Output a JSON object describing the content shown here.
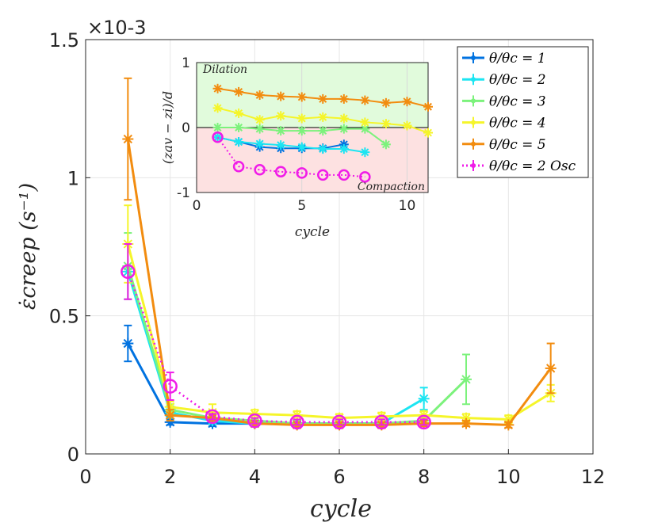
{
  "chart_data": [
    {
      "type": "line",
      "name": "main",
      "xlabel": "cycle",
      "ylabel": "ε̇creep (s⁻¹)",
      "exponent_label": "×10-3",
      "xlim": [
        0,
        12
      ],
      "ylim": [
        0,
        1.5
      ],
      "xticks": [
        "0",
        "2",
        "4",
        "6",
        "8",
        "10",
        "12"
      ],
      "yticks": [
        "0",
        "0.5",
        "1",
        "1.5"
      ],
      "series": [
        {
          "name": "θ/θc = 1",
          "color": "#0072e0",
          "marker": "asterisk",
          "dash": "solid",
          "x": [
            1,
            2,
            3,
            4,
            5,
            6,
            7
          ],
          "y": [
            0.4,
            0.115,
            0.11,
            0.11,
            0.11,
            0.11,
            0.11
          ],
          "err": [
            0.065,
            0.01,
            0.01,
            0.01,
            0.01,
            0.01,
            0.01
          ]
        },
        {
          "name": "θ/θc = 2",
          "color": "#1ce5f2",
          "marker": "asterisk",
          "dash": "solid",
          "x": [
            1,
            2,
            3,
            4,
            5,
            6,
            7,
            8
          ],
          "y": [
            0.66,
            0.15,
            0.12,
            0.11,
            0.11,
            0.11,
            0.11,
            0.2
          ],
          "err": [
            0.1,
            0.02,
            0.01,
            0.01,
            0.01,
            0.01,
            0.01,
            0.04
          ]
        },
        {
          "name": "θ/θc = 3",
          "color": "#7cf27c",
          "marker": "asterisk",
          "dash": "solid",
          "x": [
            1,
            2,
            3,
            4,
            5,
            6,
            7,
            8,
            9
          ],
          "y": [
            0.68,
            0.16,
            0.13,
            0.12,
            0.11,
            0.11,
            0.11,
            0.12,
            0.27
          ],
          "err": [
            0.12,
            0.02,
            0.01,
            0.01,
            0.01,
            0.01,
            0.01,
            0.01,
            0.09
          ]
        },
        {
          "name": "θ/θc = 4",
          "color": "#f5f52a",
          "marker": "asterisk",
          "dash": "solid",
          "x": [
            1,
            2,
            3,
            4,
            5,
            6,
            7,
            8,
            9,
            10,
            11
          ],
          "y": [
            0.76,
            0.17,
            0.15,
            0.145,
            0.14,
            0.13,
            0.135,
            0.14,
            0.13,
            0.125,
            0.22
          ],
          "err": [
            0.14,
            0.02,
            0.03,
            0.015,
            0.015,
            0.015,
            0.015,
            0.015,
            0.015,
            0.015,
            0.03
          ]
        },
        {
          "name": "θ/θc = 5",
          "color": "#f28c0f",
          "marker": "asterisk",
          "dash": "solid",
          "x": [
            1,
            2,
            3,
            4,
            5,
            6,
            7,
            8,
            9,
            10,
            11
          ],
          "y": [
            1.14,
            0.14,
            0.13,
            0.11,
            0.105,
            0.105,
            0.105,
            0.11,
            0.11,
            0.105,
            0.31
          ],
          "err": [
            0.22,
            0.02,
            0.01,
            0.01,
            0.01,
            0.01,
            0.01,
            0.01,
            0.01,
            0.01,
            0.09
          ]
        },
        {
          "name": "θ/θc = 2 Osc",
          "color": "#f01ce8",
          "marker": "circle",
          "dash": "dotted",
          "x": [
            1,
            2,
            3,
            4,
            5,
            6,
            7,
            8
          ],
          "y": [
            0.66,
            0.245,
            0.135,
            0.12,
            0.115,
            0.115,
            0.115,
            0.115
          ],
          "err": [
            0.1,
            0.05,
            0.01,
            0.01,
            0.01,
            0.01,
            0.01,
            0.01
          ]
        }
      ],
      "legend": "top-right"
    },
    {
      "type": "line",
      "name": "inset",
      "xlabel": "cycle",
      "ylabel": "(zav − zi)/d",
      "xlim": [
        0,
        11
      ],
      "ylim": [
        -1,
        1
      ],
      "xticks": [
        "0",
        "5",
        "10"
      ],
      "yticks": [
        "-1",
        "0",
        "1"
      ],
      "annotations": [
        "Dilation",
        "Compaction"
      ],
      "series": [
        {
          "name": "θ/θc = 1",
          "color": "#0072e0",
          "marker": "asterisk",
          "dash": "solid",
          "x": [
            1,
            2,
            3,
            4,
            5,
            6,
            7
          ],
          "y": [
            -0.15,
            -0.22,
            -0.3,
            -0.32,
            -0.32,
            -0.32,
            -0.26
          ]
        },
        {
          "name": "θ/θc = 2",
          "color": "#1ce5f2",
          "marker": "asterisk",
          "dash": "solid",
          "x": [
            1,
            2,
            3,
            4,
            5,
            6,
            7,
            8
          ],
          "y": [
            -0.15,
            -0.22,
            -0.25,
            -0.27,
            -0.3,
            -0.33,
            -0.33,
            -0.38
          ]
        },
        {
          "name": "θ/θc = 3",
          "color": "#7cf27c",
          "marker": "asterisk",
          "dash": "solid",
          "x": [
            1,
            2,
            3,
            4,
            5,
            6,
            7,
            8,
            9
          ],
          "y": [
            0.0,
            0.0,
            -0.02,
            -0.05,
            -0.05,
            -0.05,
            -0.02,
            -0.02,
            -0.26
          ]
        },
        {
          "name": "θ/θc = 4",
          "color": "#f5f52a",
          "marker": "asterisk",
          "dash": "solid",
          "x": [
            1,
            2,
            3,
            4,
            5,
            6,
            7,
            8,
            9,
            10,
            11
          ],
          "y": [
            0.3,
            0.22,
            0.12,
            0.18,
            0.14,
            0.16,
            0.14,
            0.08,
            0.06,
            0.03,
            -0.08
          ]
        },
        {
          "name": "θ/θc = 5",
          "color": "#f28c0f",
          "marker": "asterisk",
          "dash": "solid",
          "x": [
            1,
            2,
            3,
            4,
            5,
            6,
            7,
            8,
            9,
            10,
            11
          ],
          "y": [
            0.6,
            0.55,
            0.5,
            0.48,
            0.47,
            0.44,
            0.44,
            0.42,
            0.38,
            0.4,
            0.32
          ]
        },
        {
          "name": "θ/θc = 2 Osc",
          "color": "#f01ce8",
          "marker": "circle",
          "dash": "dotted",
          "x": [
            1,
            2,
            3,
            4,
            5,
            6,
            7,
            8
          ],
          "y": [
            -0.15,
            -0.6,
            -0.65,
            -0.68,
            -0.7,
            -0.73,
            -0.73,
            -0.76
          ]
        }
      ]
    }
  ]
}
